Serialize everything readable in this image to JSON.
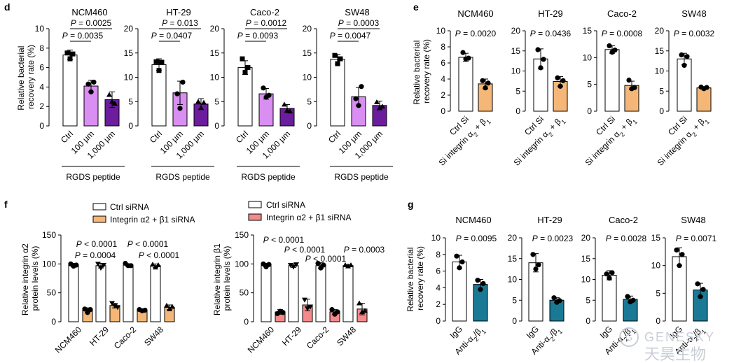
{
  "panels": {
    "d": {
      "letter": "d",
      "ylabel": [
        "Relative bacterial",
        "recovery rate (%)"
      ],
      "group_label": "RGDS peptide",
      "categories": [
        "Ctrl",
        "100 μm",
        "1,000 μm"
      ],
      "colors": [
        "#ffffff",
        "#d98ef2",
        "#6b1d9e"
      ]
    },
    "e": {
      "letter": "e",
      "ylabel": [
        "Relative bacterial",
        "recovery rate (%)"
      ],
      "categories": [
        "Ctrl Si",
        "Si integrin α2 + β1"
      ],
      "colors": [
        "#ffffff",
        "#f4b777"
      ]
    },
    "f": {
      "letter": "f",
      "legend_left": [
        "Ctrl siRNA",
        "Integrin α2 + β1 siRNA"
      ],
      "legend_right": [
        "Ctrl siRNA",
        "Integrin α2 + β1 siRNA"
      ],
      "ylabel_left": [
        "Relative integrin α2",
        "protein levels (%)"
      ],
      "ylabel_right": [
        "Relative integrin β1",
        "protein levels (%)"
      ],
      "colors_left": [
        "#ffffff",
        "#f4b777"
      ],
      "colors_right": [
        "#ffffff",
        "#f48a8a"
      ]
    },
    "g": {
      "letter": "g",
      "ylabel": [
        "Relative bacterial",
        "recovery rate (%)"
      ],
      "categories": [
        "IgG",
        "Anti-α2/β1"
      ],
      "colors": [
        "#ffffff",
        "#1a7a96"
      ]
    }
  },
  "watermark": {
    "latin": "GENESKY",
    "cjk": "天昊生物"
  },
  "chart_data": [
    {
      "panel": "d",
      "title": "NCM460",
      "type": "bar",
      "categories": [
        "Ctrl",
        "100 μm",
        "1,000 μm"
      ],
      "values": [
        7.3,
        4.1,
        2.7
      ],
      "errors": [
        0.5,
        0.6,
        0.8
      ],
      "points": [
        [
          7.5,
          6.9,
          7.4
        ],
        [
          4.3,
          3.5,
          4.5
        ],
        [
          3.2,
          2.5,
          2.3
        ]
      ],
      "ylim": [
        0,
        10
      ],
      "yticks": [
        0,
        2,
        4,
        6,
        8,
        10
      ],
      "pvalues": [
        "P = 0.0025",
        "P = 0.0035"
      ]
    },
    {
      "panel": "d",
      "title": "HT-29",
      "type": "bar",
      "categories": [
        "Ctrl",
        "100 μm",
        "1,000 μm"
      ],
      "values": [
        12.6,
        6.8,
        4.5
      ],
      "errors": [
        1.2,
        2.4,
        1.1
      ],
      "points": [
        [
          13.2,
          11.4,
          13.1
        ],
        [
          6.6,
          3.6,
          9.0
        ],
        [
          5.0,
          3.7,
          4.8
        ]
      ],
      "ylim": [
        0,
        20
      ],
      "yticks": [
        0,
        5,
        10,
        15,
        20
      ],
      "pvalues": [
        "P = 0.013",
        "P = 0.0407"
      ]
    },
    {
      "panel": "d",
      "title": "Caco-2",
      "type": "bar",
      "categories": [
        "Ctrl",
        "100 μm",
        "1,000 μm"
      ],
      "values": [
        12.0,
        6.6,
        3.6
      ],
      "errors": [
        1.4,
        1.1,
        0.8
      ],
      "points": [
        [
          13.8,
          11.0,
          12.0
        ],
        [
          7.8,
          5.9,
          6.3
        ],
        [
          4.4,
          3.2,
          3.0
        ]
      ],
      "ylim": [
        0,
        20
      ],
      "yticks": [
        0,
        5,
        10,
        15,
        20
      ],
      "pvalues": [
        "P = 0.0012",
        "P = 0.0093"
      ]
    },
    {
      "panel": "d",
      "title": "SW48",
      "type": "bar",
      "categories": [
        "Ctrl",
        "100 μm",
        "1,000 μm"
      ],
      "values": [
        13.7,
        6.0,
        4.2
      ],
      "errors": [
        1.0,
        1.9,
        0.9
      ],
      "points": [
        [
          14.5,
          12.8,
          13.8
        ],
        [
          5.6,
          4.2,
          8.1
        ],
        [
          4.9,
          3.7,
          4.0
        ]
      ],
      "ylim": [
        0,
        20
      ],
      "yticks": [
        0,
        5,
        10,
        15,
        20
      ],
      "pvalues": [
        "P = 0.0003",
        "P = 0.0047"
      ]
    },
    {
      "panel": "e",
      "title": "NCM460",
      "type": "bar",
      "categories": [
        "Ctrl Si",
        "Si integrin α2 + β1"
      ],
      "values": [
        6.7,
        3.4
      ],
      "errors": [
        0.5,
        0.6
      ],
      "points": [
        [
          7.3,
          6.5,
          6.6
        ],
        [
          3.8,
          2.9,
          3.5
        ]
      ],
      "ylim": [
        0,
        10
      ],
      "yticks": [
        0,
        2,
        4,
        6,
        8,
        10
      ],
      "pvalues": [
        "P = 0.0020"
      ]
    },
    {
      "panel": "e",
      "title": "HT-29",
      "type": "bar",
      "categories": [
        "Ctrl Si",
        "Si integrin α2 + β1"
      ],
      "values": [
        13.0,
        7.4
      ],
      "errors": [
        2.5,
        1.2
      ],
      "points": [
        [
          15.3,
          10.8,
          12.9
        ],
        [
          8.3,
          6.2,
          7.6
        ]
      ],
      "ylim": [
        0,
        20
      ],
      "yticks": [
        0,
        5,
        10,
        15,
        20
      ],
      "pvalues": [
        "P = 0.0436"
      ]
    },
    {
      "panel": "e",
      "title": "Caco-2",
      "type": "bar",
      "categories": [
        "Ctrl Si",
        "Si integrin α2 + β1"
      ],
      "values": [
        11.5,
        4.8
      ],
      "errors": [
        0.7,
        0.8
      ],
      "points": [
        [
          12.2,
          11.0,
          11.4
        ],
        [
          5.8,
          4.2,
          4.4
        ]
      ],
      "ylim": [
        0,
        15
      ],
      "yticks": [
        0,
        5,
        10,
        15
      ],
      "pvalues": [
        "P = 0.0008"
      ]
    },
    {
      "panel": "e",
      "title": "SW48",
      "type": "bar",
      "categories": [
        "Ctrl Si",
        "Si integrin α2 + β1"
      ],
      "values": [
        13.0,
        5.8
      ],
      "errors": [
        1.4,
        0.3
      ],
      "points": [
        [
          14.0,
          11.4,
          13.6
        ],
        [
          6.0,
          5.6,
          5.9
        ]
      ],
      "ylim": [
        0,
        20
      ],
      "yticks": [
        0,
        5,
        10,
        15,
        20
      ],
      "pvalues": [
        "P = 0.0032"
      ]
    },
    {
      "panel": "f",
      "title": "",
      "type": "bar",
      "categories": [
        "NCM460",
        "HT-29",
        "Caco-2",
        "SW48"
      ],
      "series": [
        {
          "name": "Ctrl siRNA",
          "values": [
            98,
            97,
            98,
            97
          ],
          "errors": [
            3,
            4,
            2,
            3
          ],
          "points": [
            [
              100,
              96,
              98
            ],
            [
              100,
              93,
              98
            ],
            [
              101,
              97,
              97
            ],
            [
              99,
              94,
              98
            ]
          ]
        },
        {
          "name": "Integrin α2 + β1 siRNA",
          "values": [
            20,
            28,
            20,
            25
          ],
          "errors": [
            4,
            4,
            2,
            4
          ],
          "points": [
            [
              22,
              16,
              21
            ],
            [
              32,
              27,
              25
            ],
            [
              21,
              19,
              20
            ],
            [
              28,
              22,
              26
            ]
          ]
        }
      ],
      "ylim": [
        0,
        150
      ],
      "yticks": [
        0,
        50,
        100,
        150
      ],
      "pvalues": [
        "P < 0.0001",
        "P < 0.0001",
        "P = 0.0004",
        "P < 0.0001"
      ]
    },
    {
      "panel": "f",
      "title": "",
      "type": "bar",
      "categories": [
        "NCM460",
        "HT-29",
        "Caco-2",
        "SW48"
      ],
      "series": [
        {
          "name": "Ctrl siRNA",
          "values": [
            98,
            97,
            97,
            97
          ],
          "errors": [
            3,
            3,
            5,
            2
          ],
          "points": [
            [
              100,
              95,
              99
            ],
            [
              98,
              95,
              99
            ],
            [
              101,
              93,
              98
            ],
            [
              98,
              96,
              98
            ]
          ]
        },
        {
          "name": "Integrin α2 + β1 siRNA",
          "values": [
            17,
            29,
            17,
            22
          ],
          "errors": [
            4,
            10,
            4,
            10
          ],
          "points": [
            [
              14,
              18,
              16
            ],
            [
              38,
              23,
              26
            ],
            [
              21,
              13,
              17
            ],
            [
              32,
              17,
              19
            ]
          ]
        }
      ],
      "ylim": [
        0,
        150
      ],
      "yticks": [
        0,
        50,
        100,
        150
      ],
      "pvalues": [
        "P < 0.0001",
        "P < 0.0001",
        "P < 0.0001",
        "P = 0.0003"
      ]
    },
    {
      "panel": "g",
      "title": "NCM460",
      "type": "bar",
      "categories": [
        "IgG",
        "Anti-α2/β1"
      ],
      "values": [
        7.1,
        4.4
      ],
      "errors": [
        0.8,
        0.6
      ],
      "points": [
        [
          7.8,
          6.4,
          7.1
        ],
        [
          4.9,
          3.8,
          4.5
        ]
      ],
      "ylim": [
        0,
        10
      ],
      "yticks": [
        0,
        2,
        4,
        6,
        8,
        10
      ],
      "pvalues": [
        "P = 0.0095"
      ]
    },
    {
      "panel": "g",
      "title": "HT-29",
      "type": "bar",
      "categories": [
        "IgG",
        "Anti-α2/β1"
      ],
      "values": [
        14.0,
        5.0
      ],
      "errors": [
        2.2,
        0.6
      ],
      "points": [
        [
          16.0,
          12.5,
          13.5
        ],
        [
          5.6,
          4.5,
          4.9
        ]
      ],
      "ylim": [
        0,
        20
      ],
      "yticks": [
        0,
        5,
        10,
        15,
        20
      ],
      "pvalues": [
        "P = 0.0023"
      ]
    },
    {
      "panel": "g",
      "title": "Caco-2",
      "type": "bar",
      "categories": [
        "IgG",
        "Anti-α2/β1"
      ],
      "values": [
        11.0,
        5.2
      ],
      "errors": [
        1.1,
        0.8
      ],
      "points": [
        [
          11.3,
          10.3,
          11.6
        ],
        [
          5.9,
          4.6,
          5.0
        ]
      ],
      "ylim": [
        0,
        20
      ],
      "yticks": [
        0,
        5,
        10,
        15,
        20
      ],
      "pvalues": [
        "P = 0.0028"
      ]
    },
    {
      "panel": "g",
      "title": "SW48",
      "type": "bar",
      "categories": [
        "IgG",
        "Anti-α2/β1"
      ],
      "values": [
        11.6,
        5.6
      ],
      "errors": [
        1.6,
        1.2
      ],
      "points": [
        [
          12.8,
          10.0,
          12.0
        ],
        [
          6.7,
          4.4,
          5.7
        ]
      ],
      "ylim": [
        0,
        15
      ],
      "yticks": [
        0,
        5,
        10,
        15
      ],
      "pvalues": [
        "P = 0.0071"
      ]
    }
  ]
}
